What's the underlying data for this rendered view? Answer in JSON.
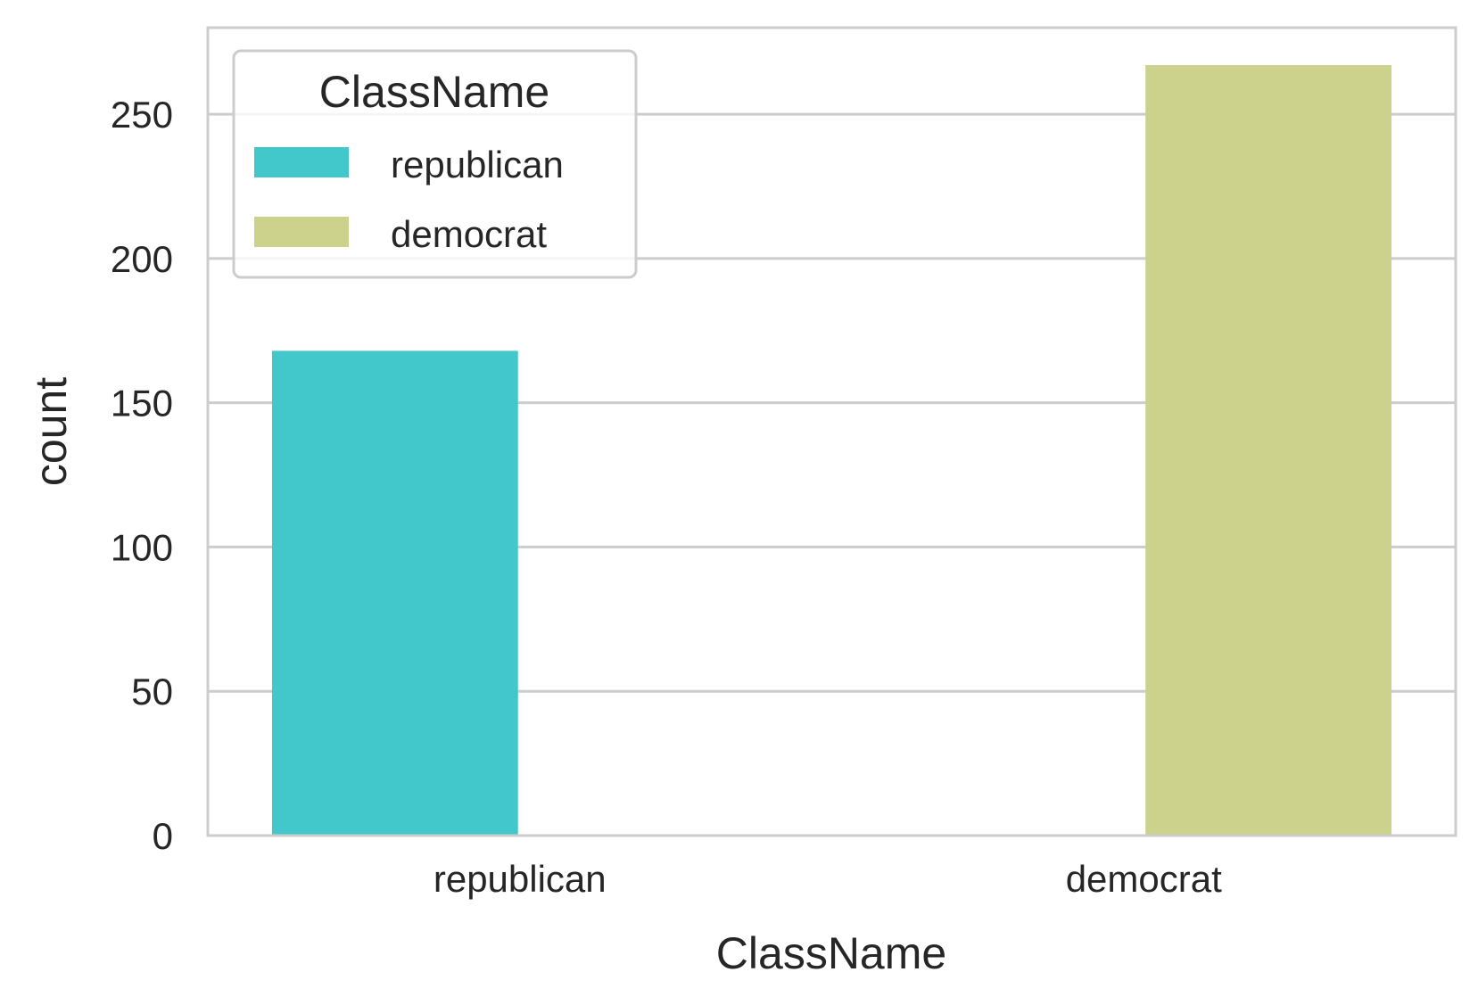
{
  "chart_data": {
    "type": "bar",
    "categories": [
      "republican",
      "democrat"
    ],
    "series": [
      {
        "name": "republican",
        "values": [
          168,
          0
        ],
        "color": "#42c8ca"
      },
      {
        "name": "democrat",
        "values": [
          0,
          267
        ],
        "color": "#ccd28b"
      }
    ],
    "xlabel": "ClassName",
    "ylabel": "count",
    "ylim": [
      0,
      280
    ],
    "yticks": [
      0,
      50,
      100,
      150,
      200,
      250
    ],
    "grid": true,
    "legend": {
      "title": "ClassName",
      "position": "top-left",
      "entries": [
        "republican",
        "democrat"
      ]
    },
    "colors": {
      "grid": "#cccccc",
      "spine": "#cccccc",
      "text": "#262626"
    }
  }
}
